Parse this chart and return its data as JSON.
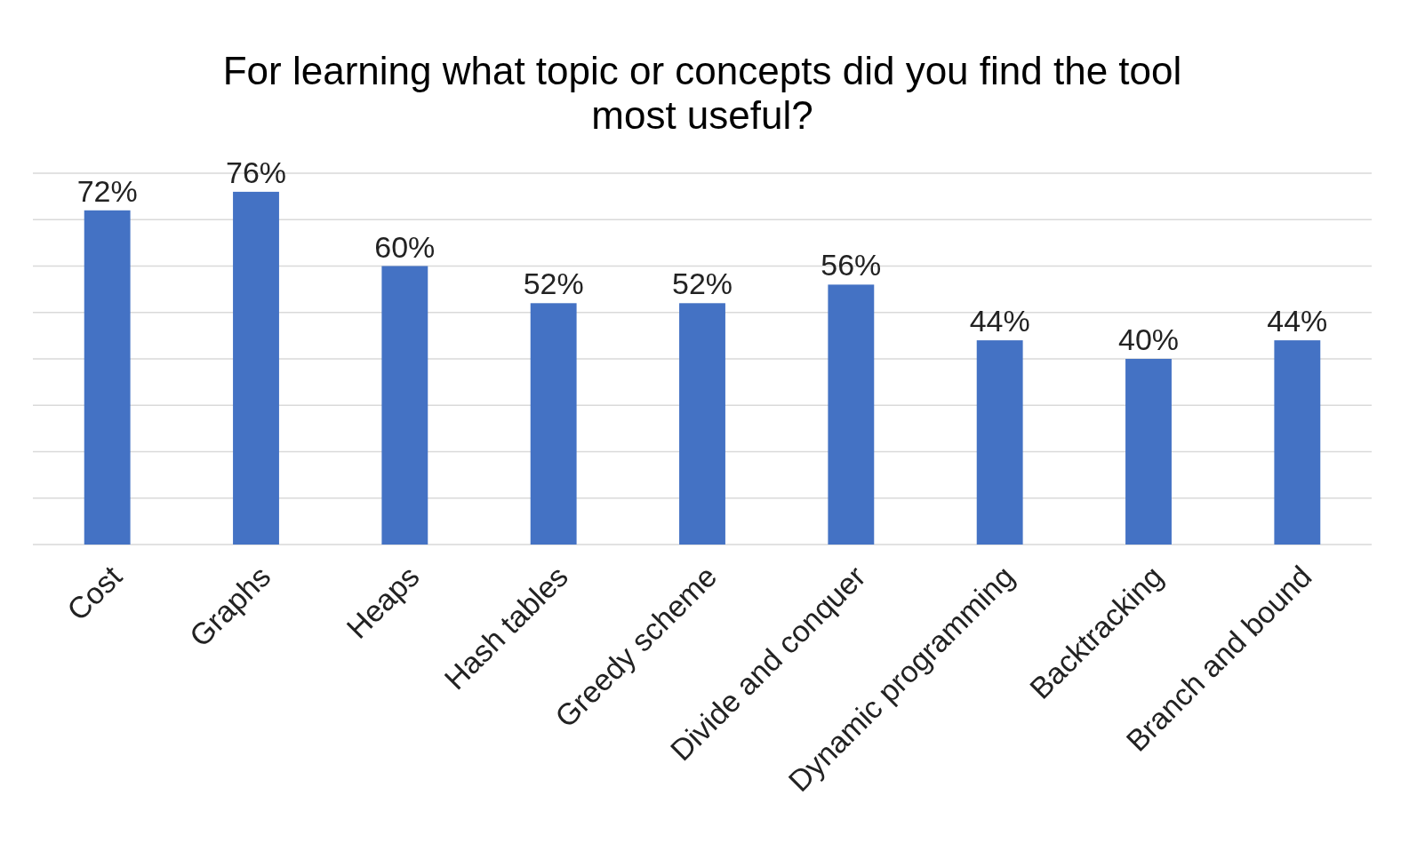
{
  "chart_data": {
    "type": "bar",
    "title": "For learning what topic or concepts did you find the tool most useful?",
    "categories": [
      "Cost",
      "Graphs",
      "Heaps",
      "Hash tables",
      "Greedy scheme",
      "Divide and conquer",
      "Dynamic programming",
      "Backtracking",
      "Branch and bound"
    ],
    "values": [
      72,
      76,
      60,
      52,
      52,
      56,
      44,
      40,
      44
    ],
    "value_labels": [
      "72%",
      "76%",
      "60%",
      "52%",
      "52%",
      "56%",
      "44%",
      "40%",
      "44%"
    ],
    "color": "#4472c4",
    "ylim": [
      0,
      80
    ],
    "yticks": [
      {
        "value": 0,
        "label": null
      },
      {
        "value": 10,
        "label": null
      },
      {
        "value": 20,
        "label": null
      },
      {
        "value": 30,
        "label": null
      },
      {
        "value": 40,
        "label": null
      },
      {
        "value": 50,
        "label": null
      },
      {
        "value": 60,
        "label": null
      },
      {
        "value": 70,
        "label": null
      },
      {
        "value": 80,
        "label": null
      }
    ],
    "grid": "y",
    "tick_labels": "x"
  }
}
